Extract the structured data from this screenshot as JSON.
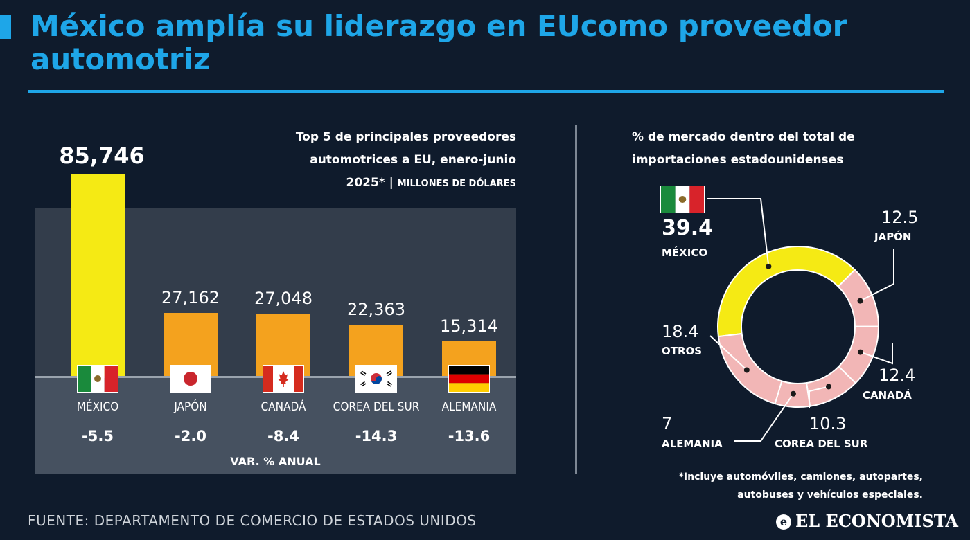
{
  "header": {
    "title": "México amplía su liderazgo en EUcomo proveedor automotriz"
  },
  "chart_data": [
    {
      "type": "bar",
      "subtitle_line1": "Top 5 de principales proveedores",
      "subtitle_line2": "automotrices a EU, enero-junio",
      "subtitle_line3": "2025*",
      "subtitle_separator": "|",
      "units": "MILLONES DE DÓLARES",
      "categories": [
        "MÉXICO",
        "JAPÓN",
        "CANADÁ",
        "COREA DEL SUR",
        "ALEMANIA"
      ],
      "values": [
        85746,
        27162,
        27048,
        22363,
        15314
      ],
      "value_labels": [
        "85,746",
        "27,162",
        "27,048",
        "22,363",
        "15,314"
      ],
      "annual_change": [
        "-5.5",
        "-2.0",
        "-8.4",
        "-14.3",
        "-13.6"
      ],
      "annual_change_title": "VAR. % ANUAL",
      "colors": {
        "highlight": "#f5ea14",
        "others": "#f4a21e"
      },
      "ylim": [
        0,
        85746
      ]
    },
    {
      "type": "pie",
      "subtitle_line1": "% de mercado dentro del total de",
      "subtitle_line2": "importaciones estadounidenses",
      "slices": [
        {
          "name": "MÉXICO",
          "value": 39.4,
          "label": "39.4"
        },
        {
          "name": "JAPÓN",
          "value": 12.5,
          "label": "12.5"
        },
        {
          "name": "CANADÁ",
          "value": 12.4,
          "label": "12.4"
        },
        {
          "name": "COREA DEL SUR",
          "value": 10.3,
          "label": "10.3"
        },
        {
          "name": "ALEMANIA",
          "value": 7,
          "label": "7"
        },
        {
          "name": "OTROS",
          "value": 18.4,
          "label": "18.4"
        }
      ],
      "colors": {
        "highlight": "#f5ea14",
        "others": "#f2b6b6",
        "separator": "#ffffff"
      },
      "footnote_line1": "*Incluye automóviles, camiones, autopartes,",
      "footnote_line2": "autobuses y vehículos especiales."
    }
  ],
  "footer": {
    "source": "FUENTE: DEPARTAMENTO DE COMERCIO DE ESTADOS UNIDOS",
    "brand": "EL ECONOMISTA",
    "brand_mark": "e"
  },
  "icons": [
    "mexico-flag-icon",
    "japan-flag-icon",
    "canada-flag-icon",
    "south-korea-flag-icon",
    "germany-flag-icon"
  ]
}
